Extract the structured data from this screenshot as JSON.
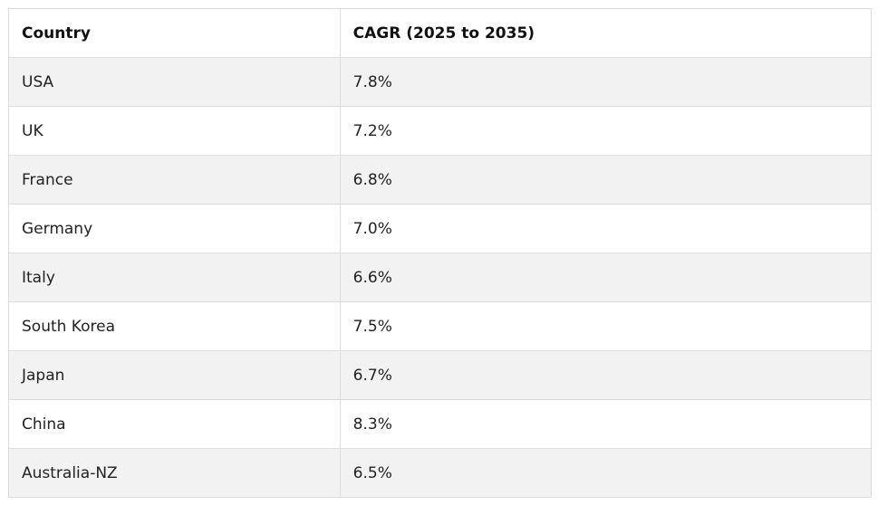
{
  "table": {
    "headers": [
      "Country",
      "CAGR (2025 to 2035)"
    ],
    "rows": [
      [
        "USA",
        "7.8%"
      ],
      [
        "UK",
        "7.2%"
      ],
      [
        "France",
        "6.8%"
      ],
      [
        "Germany",
        "7.0%"
      ],
      [
        "Italy",
        "6.6%"
      ],
      [
        "South Korea",
        "7.5%"
      ],
      [
        "Japan",
        "6.7%"
      ],
      [
        "China",
        "8.3%"
      ],
      [
        "Australia-NZ",
        "6.5%"
      ]
    ]
  },
  "colors": {
    "row_alt": "#f2f2f2",
    "row": "#ffffff",
    "border": "#dddddd"
  }
}
